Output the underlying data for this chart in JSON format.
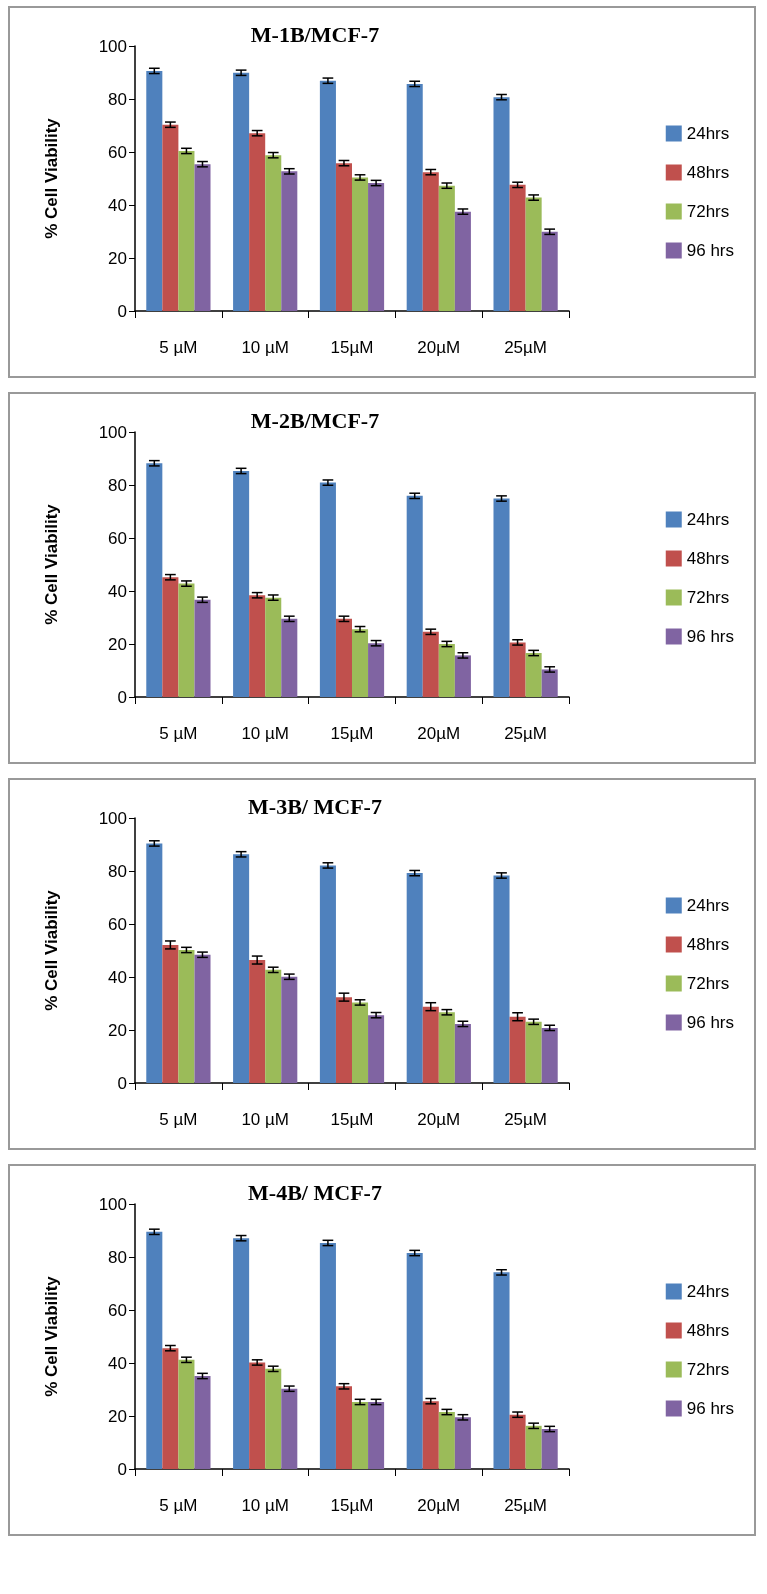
{
  "chart_data": [
    {
      "type": "bar",
      "title": "M-1B/MCF-7",
      "ylabel": "% Cell Viability",
      "categories": [
        "5 µM",
        "10 µM",
        "15µM",
        "20µM",
        "25µM"
      ],
      "ylim": [
        0,
        100
      ],
      "yticks": [
        0,
        20,
        40,
        60,
        80,
        100
      ],
      "grid": false,
      "legend": "right",
      "series": [
        {
          "name": "24hrs",
          "color": "#4f81bd",
          "values": [
            90.6,
            89.9,
            86.9,
            85.7,
            80.7
          ],
          "errors": [
            1,
            1,
            1,
            1,
            1
          ]
        },
        {
          "name": "48hrs",
          "color": "#c0504d",
          "values": [
            70.3,
            67.1,
            55.8,
            52.4,
            47.6
          ],
          "errors": [
            1,
            1,
            1,
            1,
            1
          ]
        },
        {
          "name": "72hrs",
          "color": "#9bbb59",
          "values": [
            60.4,
            58.8,
            50.4,
            47.3,
            42.8
          ],
          "errors": [
            1,
            1,
            1,
            1,
            1
          ]
        },
        {
          "name": "96 hrs",
          "color": "#8064a2",
          "values": [
            55.4,
            52.7,
            48.3,
            37.5,
            29.9
          ],
          "errors": [
            1,
            1,
            1,
            1,
            1
          ]
        }
      ]
    },
    {
      "type": "bar",
      "title": "M-2B/MCF-7",
      "ylabel": "% Cell Viability",
      "categories": [
        "5 µM",
        "10 µM",
        "15µM",
        "20µM",
        "25µM"
      ],
      "ylim": [
        0,
        100
      ],
      "yticks": [
        0,
        20,
        40,
        60,
        80,
        100
      ],
      "grid": false,
      "legend": "right",
      "series": [
        {
          "name": "24hrs",
          "color": "#4f81bd",
          "values": [
            88.2,
            85.3,
            80.9,
            75.9,
            74.9
          ],
          "errors": [
            1,
            1,
            1,
            1,
            1
          ]
        },
        {
          "name": "48hrs",
          "color": "#c0504d",
          "values": [
            45.2,
            38.4,
            29.5,
            24.6,
            20.6
          ],
          "errors": [
            1,
            1,
            1,
            1,
            1
          ]
        },
        {
          "name": "72hrs",
          "color": "#9bbb59",
          "values": [
            42.8,
            37.5,
            25.6,
            20.0,
            16.6
          ],
          "errors": [
            1,
            1,
            1,
            1,
            1
          ]
        },
        {
          "name": "96 hrs",
          "color": "#8064a2",
          "values": [
            36.7,
            29.5,
            20.3,
            15.7,
            10.4
          ],
          "errors": [
            1,
            1,
            1,
            1,
            1
          ]
        }
      ]
    },
    {
      "type": "bar",
      "title": "M-3B/ MCF-7",
      "ylabel": "% Cell Viability",
      "categories": [
        "5 µM",
        "10 µM",
        "15µM",
        "20µM",
        "25µM"
      ],
      "ylim": [
        0,
        100
      ],
      "yticks": [
        0,
        20,
        40,
        60,
        80,
        100
      ],
      "grid": false,
      "legend": "right",
      "series": [
        {
          "name": "24hrs",
          "color": "#4f81bd",
          "values": [
            90.4,
            86.3,
            82.1,
            79.2,
            78.3
          ],
          "errors": [
            1,
            1,
            1,
            1,
            1
          ]
        },
        {
          "name": "48hrs",
          "color": "#c0504d",
          "values": [
            52.1,
            46.4,
            32.4,
            28.8,
            25.0
          ],
          "errors": [
            1.5,
            1.5,
            1.5,
            1.5,
            1.5
          ]
        },
        {
          "name": "72hrs",
          "color": "#9bbb59",
          "values": [
            50.2,
            42.7,
            30.4,
            26.7,
            23.1
          ],
          "errors": [
            1,
            1,
            1,
            1,
            1
          ]
        },
        {
          "name": "96 hrs",
          "color": "#8064a2",
          "values": [
            48.4,
            40.1,
            25.6,
            22.3,
            20.8
          ],
          "errors": [
            1,
            1,
            1,
            1,
            1
          ]
        }
      ]
    },
    {
      "type": "bar",
      "title": "M-4B/ MCF-7",
      "ylabel": "% Cell Viability",
      "categories": [
        "5 µM",
        "10 µM",
        "15µM",
        "20µM",
        "25µM"
      ],
      "ylim": [
        0,
        100
      ],
      "yticks": [
        0,
        20,
        40,
        60,
        80,
        100
      ],
      "grid": false,
      "legend": "right",
      "series": [
        {
          "name": "24hrs",
          "color": "#4f81bd",
          "values": [
            89.5,
            87.1,
            85.3,
            81.5,
            74.2
          ],
          "errors": [
            1,
            1,
            1,
            1,
            1
          ]
        },
        {
          "name": "48hrs",
          "color": "#c0504d",
          "values": [
            45.6,
            40.2,
            31.2,
            25.6,
            20.5
          ],
          "errors": [
            1,
            1,
            1,
            1,
            1
          ]
        },
        {
          "name": "72hrs",
          "color": "#9bbb59",
          "values": [
            41.2,
            37.8,
            25.3,
            21.5,
            16.3
          ],
          "errors": [
            1,
            1,
            1,
            1,
            1
          ]
        },
        {
          "name": "96 hrs",
          "color": "#8064a2",
          "values": [
            35.1,
            30.3,
            25.3,
            19.5,
            15.1
          ],
          "errors": [
            1,
            1,
            1,
            1,
            1
          ]
        }
      ]
    }
  ]
}
